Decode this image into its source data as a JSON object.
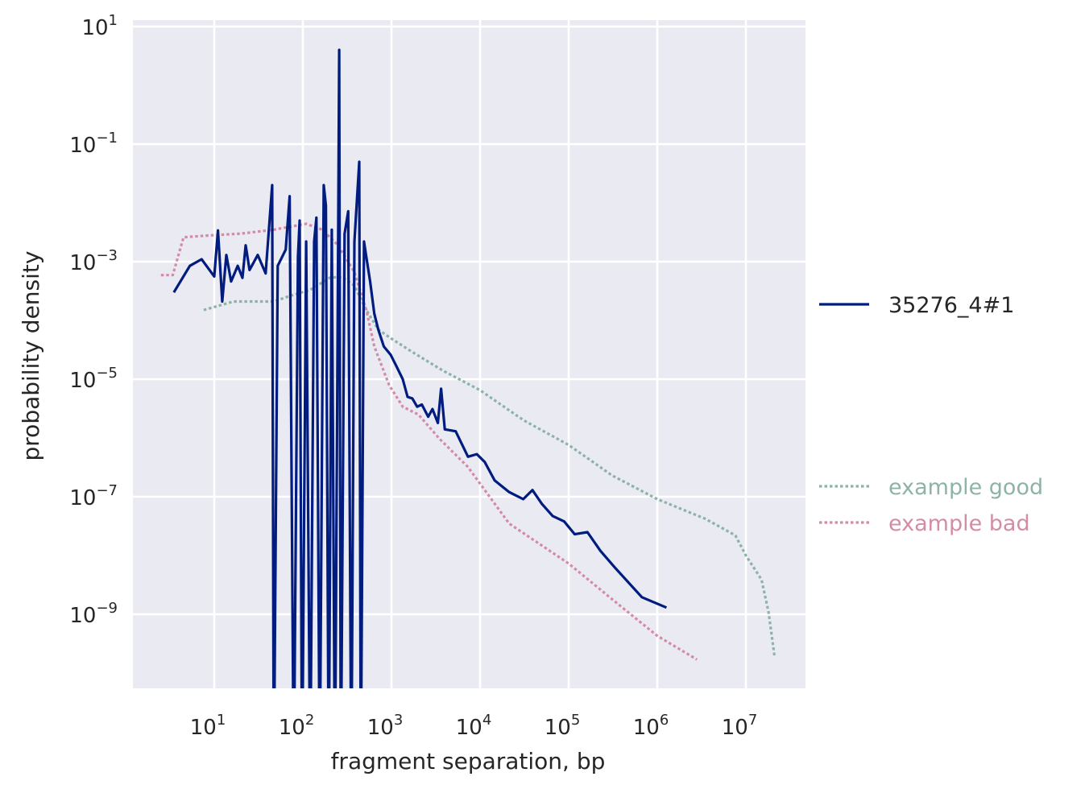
{
  "chart_data": {
    "type": "line",
    "xlabel": "fragment separation, bp",
    "ylabel": "probability density",
    "xscale": "log",
    "yscale": "log",
    "xlim": [
      1.2,
      47000000
    ],
    "ylim": [
      5.5e-11,
      13
    ],
    "grid": true,
    "legend_placement": "right-outside",
    "x_ticks": [
      {
        "base": "10",
        "exp": "1",
        "value": 10
      },
      {
        "base": "10",
        "exp": "2",
        "value": 100
      },
      {
        "base": "10",
        "exp": "3",
        "value": 1000
      },
      {
        "base": "10",
        "exp": "4",
        "value": 10000
      },
      {
        "base": "10",
        "exp": "5",
        "value": 100000
      },
      {
        "base": "10",
        "exp": "6",
        "value": 1000000
      },
      {
        "base": "10",
        "exp": "7",
        "value": 10000000
      }
    ],
    "y_ticks": [
      {
        "base": "10",
        "exp": "1",
        "value": 10
      },
      {
        "base": "10",
        "exp": "−1",
        "value": 0.1
      },
      {
        "base": "10",
        "exp": "−3",
        "value": 0.001
      },
      {
        "base": "10",
        "exp": "−5",
        "value": 1e-05
      },
      {
        "base": "10",
        "exp": "−7",
        "value": 1e-07
      },
      {
        "base": "10",
        "exp": "−9",
        "value": 1e-09
      }
    ],
    "series": [
      {
        "name": "35276_4#1",
        "color": "#001c7f",
        "style": "solid",
        "x": [
          3.5,
          5.3,
          7.2,
          10,
          11,
          12.3,
          13.7,
          15.5,
          18.4,
          20.8,
          22.6,
          25,
          31,
          38,
          45,
          47,
          52,
          64,
          71,
          79,
          88,
          92,
          98,
          109,
          121,
          134,
          142,
          155,
          172,
          182,
          196,
          212,
          230,
          250,
          257,
          268,
          296,
          325,
          352,
          382,
          433,
          450,
          490,
          520,
          574,
          640,
          710,
          820,
          980,
          1130,
          1340,
          1520,
          1720,
          1950,
          2200,
          2600,
          2900,
          3340,
          3630,
          4000,
          5300,
          7300,
          9200,
          11300,
          14600,
          21300,
          30700,
          39000,
          50000,
          66000,
          89000,
          117000,
          163000,
          228000,
          330000,
          670000,
          1270000
        ],
        "y": [
          0.0003,
          0.00085,
          0.0011,
          0.00056,
          0.0034,
          0.00021,
          0.0013,
          0.00046,
          0.00085,
          0.00053,
          0.0019,
          0.00072,
          0.0013,
          0.00063,
          0.02,
          1e-12,
          0.00085,
          0.0016,
          0.013,
          1e-12,
          0.0012,
          0.005,
          1e-12,
          0.0022,
          1e-12,
          0.0022,
          0.0056,
          1e-12,
          0.02,
          0.009,
          1e-12,
          0.0035,
          1e-12,
          0.0022,
          4,
          1e-12,
          0.003,
          0.0072,
          1e-12,
          0.0022,
          0.05,
          1e-12,
          0.0022,
          0.0012,
          0.00046,
          0.00013,
          7e-05,
          3.6e-05,
          2.6e-05,
          1.7e-05,
          1e-05,
          5e-06,
          4.7e-06,
          3.4e-06,
          3.7e-06,
          2.3e-06,
          3.1e-06,
          1.8e-06,
          6.9e-06,
          1.4e-06,
          1.3e-06,
          4.8e-07,
          5.3e-07,
          3.9e-07,
          1.9e-07,
          1.2e-07,
          9.1e-08,
          1.3e-07,
          7.5e-08,
          4.7e-08,
          3.8e-08,
          2.3e-08,
          2.5e-08,
          1.2e-08,
          6.3e-09,
          1.95e-09,
          1.3e-09
        ]
      },
      {
        "name": "example good",
        "color": "#8db3a8",
        "style": "dotted",
        "x": [
          7.6,
          16.5,
          47,
          71,
          121,
          205,
          280,
          382,
          520,
          710,
          980,
          1660,
          3800,
          10000,
          31000,
          100000,
          310000,
          1000000,
          3500000,
          7600000,
          10000000,
          15000000,
          18000000,
          21000000
        ],
        "y": [
          0.00015,
          0.00021,
          0.00021,
          0.00026,
          0.00033,
          0.00054,
          0.00054,
          0.00039,
          0.00015,
          7e-05,
          5e-05,
          3e-05,
          1.4e-05,
          6.5e-06,
          2e-06,
          7.6e-07,
          2.3e-07,
          9.1e-08,
          4.2e-08,
          2.2e-08,
          1e-08,
          3.9e-09,
          1.1e-09,
          2e-10
        ]
      },
      {
        "name": "example bad",
        "color": "#d48ca6",
        "style": "dotted",
        "x": [
          2.5,
          3.4,
          4.5,
          8.8,
          20,
          47,
          109,
          165,
          250,
          382,
          520,
          640,
          940,
          1340,
          2020,
          3450,
          7300,
          21300,
          100000,
          310000,
          1000000,
          2800000
        ],
        "y": [
          0.00059,
          0.00059,
          0.0026,
          0.0028,
          0.003,
          0.0035,
          0.0044,
          0.0035,
          0.0019,
          0.00066,
          0.00015,
          3.6e-05,
          8e-06,
          3.4e-06,
          2.5e-06,
          9.8e-07,
          3.2e-07,
          3.5e-08,
          7.3e-09,
          1.8e-09,
          4.3e-10,
          1.7e-10
        ]
      }
    ]
  }
}
